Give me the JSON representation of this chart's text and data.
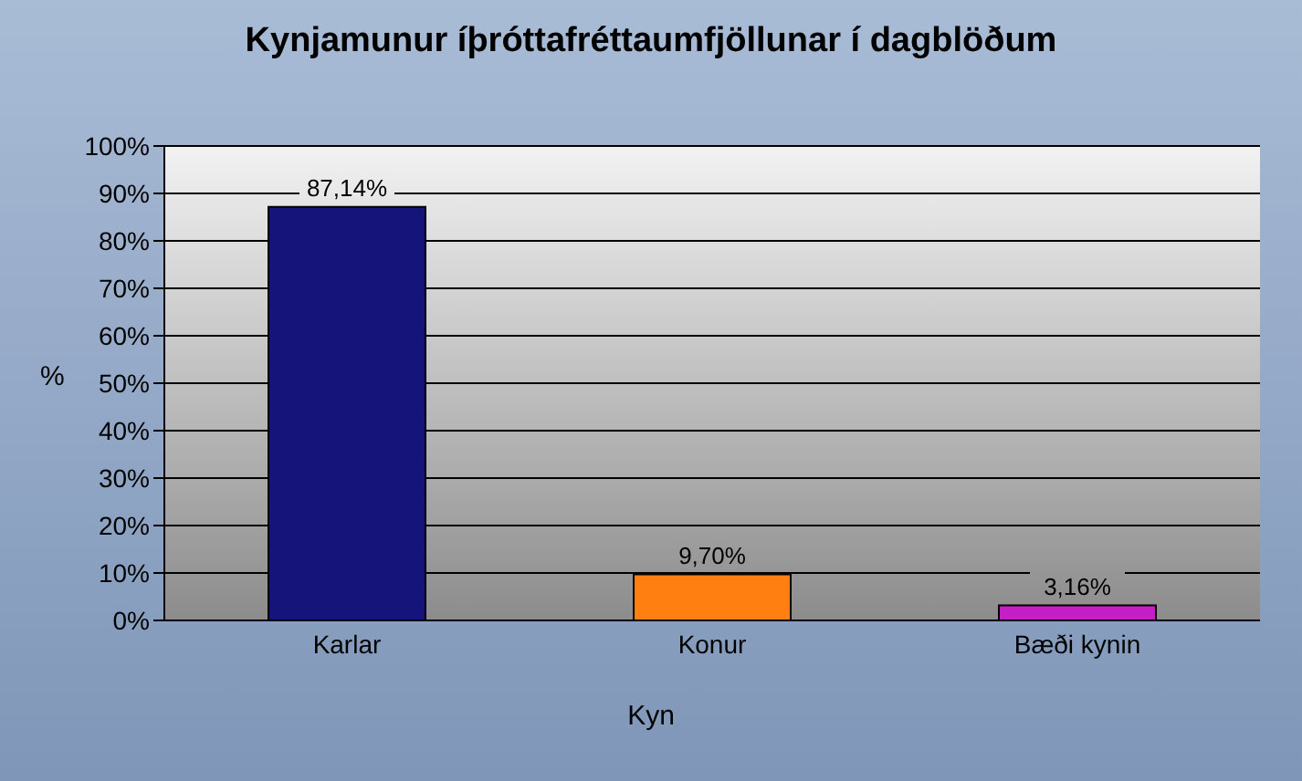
{
  "chart_data": {
    "type": "bar",
    "title": "Kynjamunur íþróttafréttaumfjöllunar í dagblöðum",
    "xlabel": "Kyn",
    "ylabel": "%",
    "categories": [
      "Karlar",
      "Konur",
      "Bæði kynin"
    ],
    "values": [
      87.14,
      9.7,
      3.16
    ],
    "colors": [
      "#14147a",
      "#ff8010",
      "#c81ec8"
    ],
    "value_labels": [
      "87,14%",
      "9,70%",
      "3,16%"
    ],
    "ylim": [
      0,
      100
    ],
    "yticks": [
      {
        "value": 0,
        "label": "0%"
      },
      {
        "value": 10,
        "label": "10%"
      },
      {
        "value": 20,
        "label": "20%"
      },
      {
        "value": 30,
        "label": "30%"
      },
      {
        "value": 40,
        "label": "40%"
      },
      {
        "value": 50,
        "label": "50%"
      },
      {
        "value": 60,
        "label": "60%"
      },
      {
        "value": 70,
        "label": "70%"
      },
      {
        "value": 80,
        "label": "80%"
      },
      {
        "value": 90,
        "label": "90%"
      },
      {
        "value": 100,
        "label": "100%"
      }
    ],
    "grid": "y",
    "legend": false
  }
}
